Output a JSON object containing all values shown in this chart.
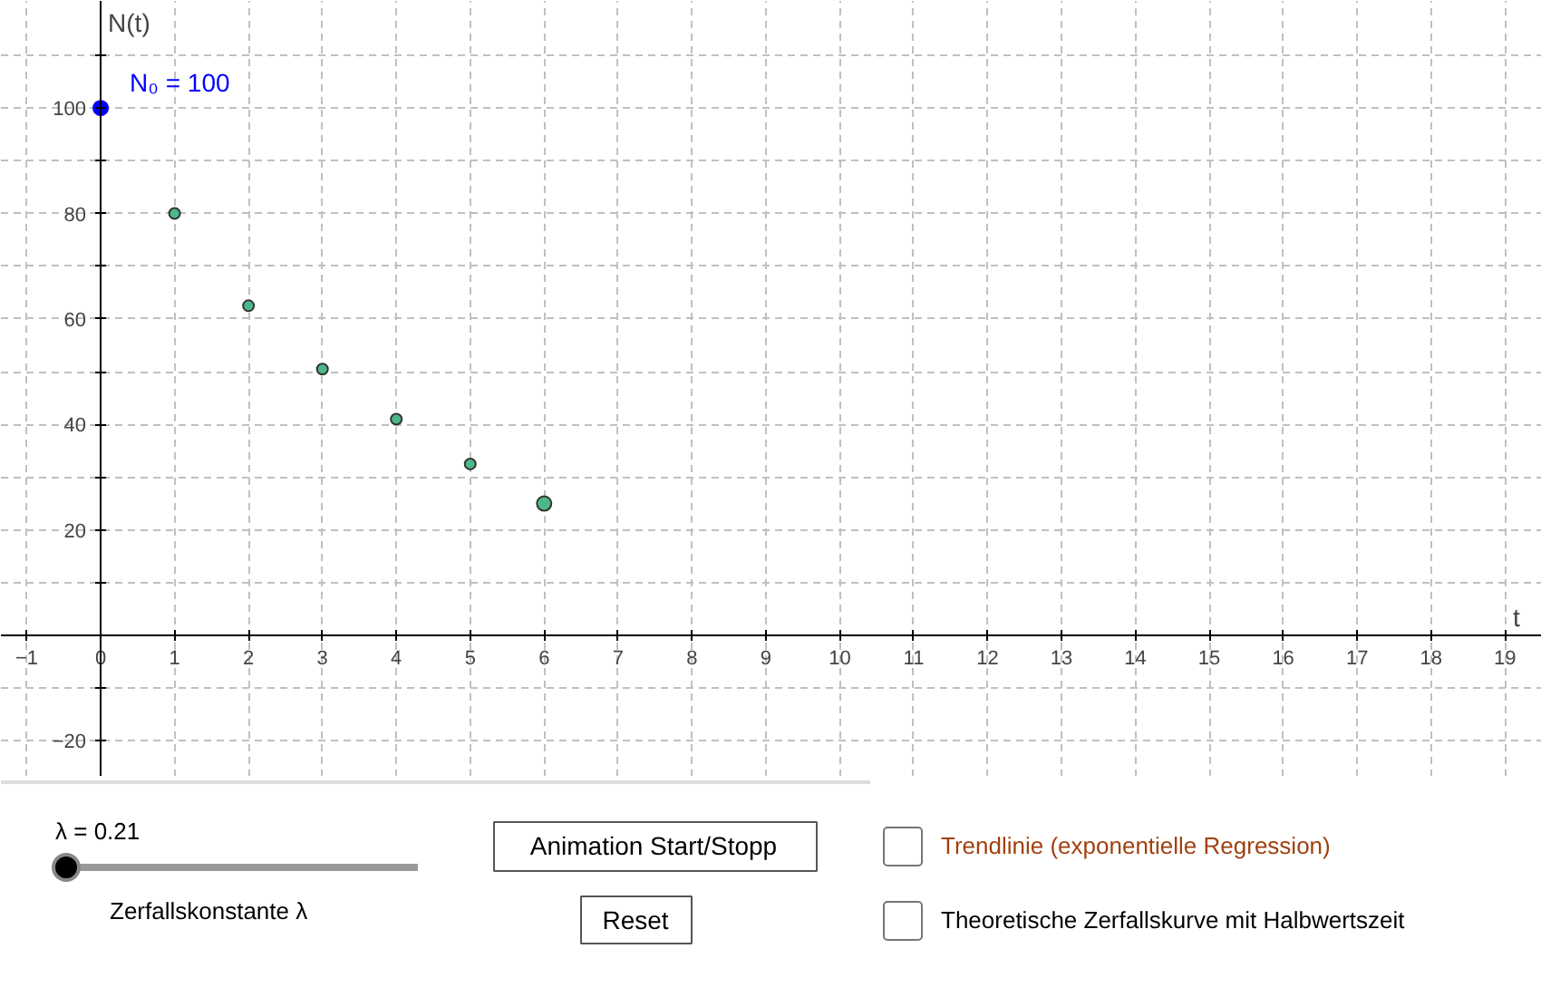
{
  "chart_data": {
    "type": "scatter",
    "xlabel": "t",
    "ylabel": "N(t)",
    "series": [
      {
        "color": "#0000ff",
        "x": [
          0
        ],
        "values": [
          100
        ]
      },
      {
        "color": "#4cb88a",
        "x": [
          1,
          2,
          3,
          4,
          5
        ],
        "values": [
          80,
          62.5,
          50.5,
          41,
          32.5
        ]
      },
      {
        "color": "#4cb88a",
        "x": [
          6
        ],
        "values": [
          25
        ]
      }
    ],
    "xlim": [
      -1.35,
      19.5
    ],
    "ylim": [
      -26.8,
      120.3
    ],
    "xticks": [
      -1,
      0,
      1,
      2,
      3,
      4,
      5,
      6,
      7,
      8,
      9,
      10,
      11,
      12,
      13,
      14,
      15,
      16,
      17,
      18,
      19
    ],
    "yticks": [
      -20,
      {
        "value": -10,
        "label": null
      },
      {
        "value": 0,
        "label": null
      },
      {
        "value": 10,
        "label": null
      },
      20,
      {
        "value": 30,
        "label": null
      },
      40,
      {
        "value": 50,
        "label": null
      },
      60,
      {
        "value": 70,
        "label": null
      },
      80,
      {
        "value": 90,
        "label": null
      },
      100,
      {
        "value": 110,
        "label": null
      }
    ],
    "grid": true,
    "marker": "circle",
    "annotations": [
      {
        "text": "N₀ = 100",
        "x": 0,
        "y": 100
      },
      "λ = 0.21",
      "Zerfallskonstante λ",
      "Animation Start/Stopp",
      "Reset",
      "Trendlinie (exponentielle Regression)",
      "Theoretische Zerfallskurve mit Halbwertszeit"
    ]
  }
}
